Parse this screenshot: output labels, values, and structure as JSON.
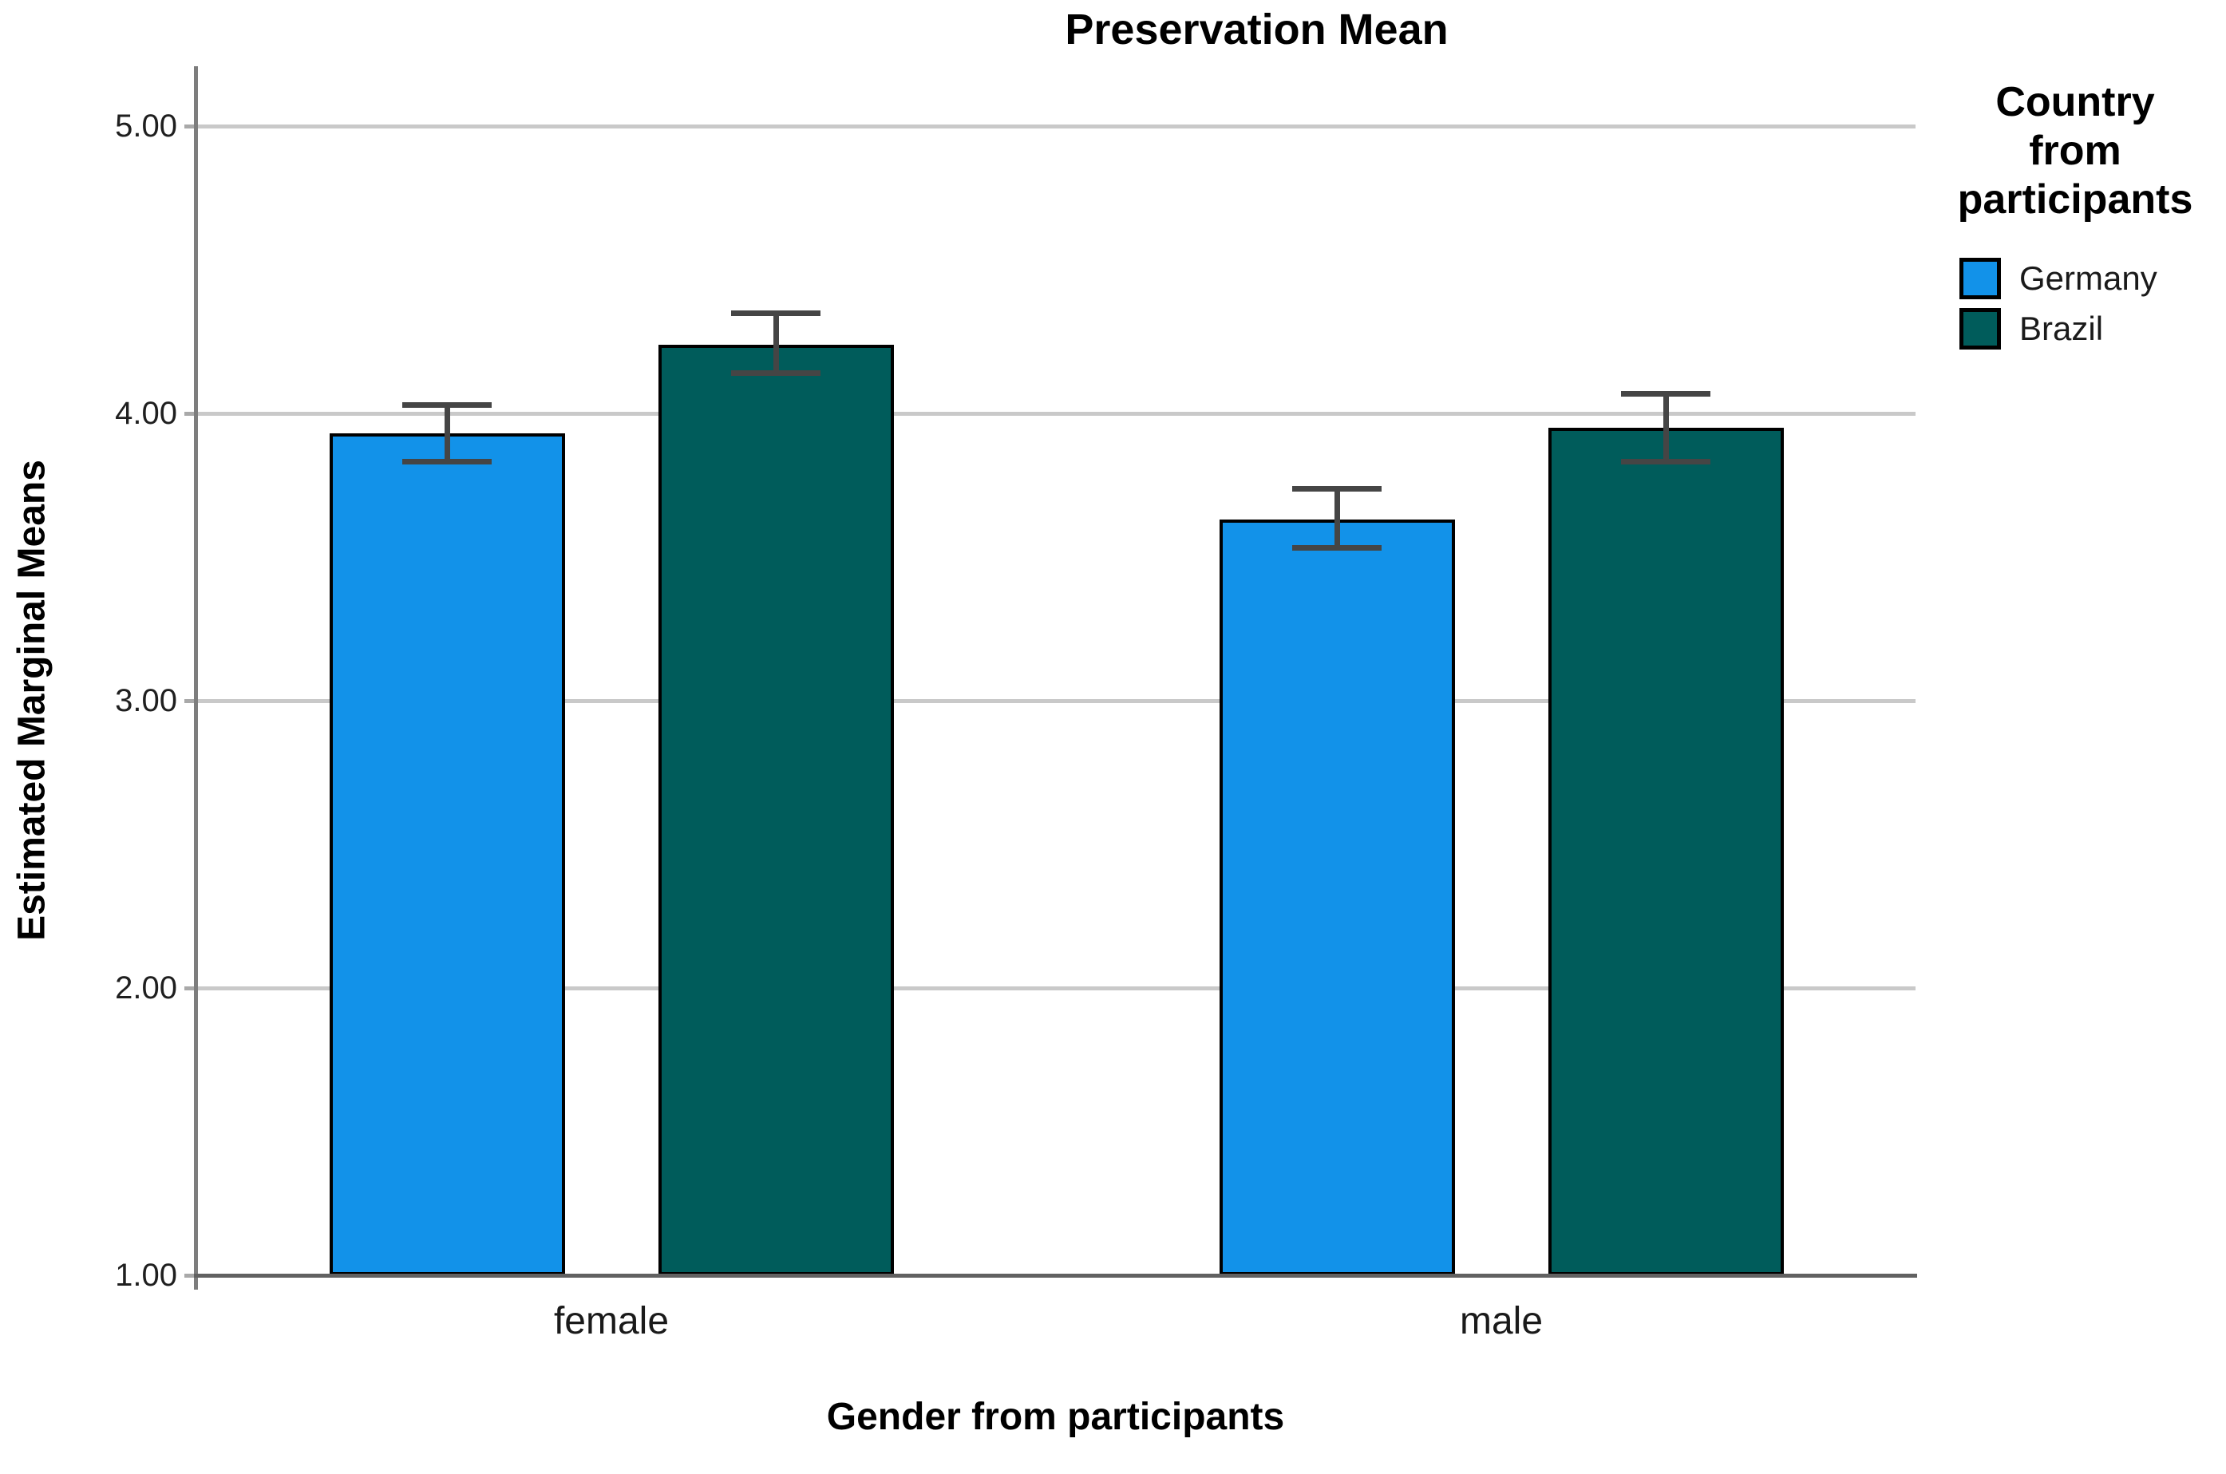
{
  "chart_data": {
    "type": "bar",
    "title": "Preservation Mean",
    "xlabel": "Gender from participants",
    "ylabel": "Estimated Marginal Means",
    "categories": [
      "female",
      "male"
    ],
    "series": [
      {
        "name": "Germany",
        "color": "#1292E9",
        "values": [
          3.93,
          3.63
        ],
        "error_low": [
          3.83,
          3.53
        ],
        "error_high": [
          4.03,
          3.74
        ]
      },
      {
        "name": "Brazil",
        "color": "#005C5B",
        "values": [
          4.24,
          3.95
        ],
        "error_low": [
          4.14,
          3.83
        ],
        "error_high": [
          4.35,
          4.07
        ]
      }
    ],
    "y_ticks": [
      {
        "label": "1.00",
        "value": 1
      },
      {
        "label": "2.00",
        "value": 2
      },
      {
        "label": "3.00",
        "value": 3
      },
      {
        "label": "4.00",
        "value": 4
      },
      {
        "label": "5.00",
        "value": 5
      }
    ],
    "ylim": [
      1,
      5.2
    ],
    "grid": true,
    "legend_title": "Country from participants",
    "legend_position": "right"
  },
  "legend": {
    "title_lines": [
      "Country",
      "from",
      "participants"
    ]
  }
}
